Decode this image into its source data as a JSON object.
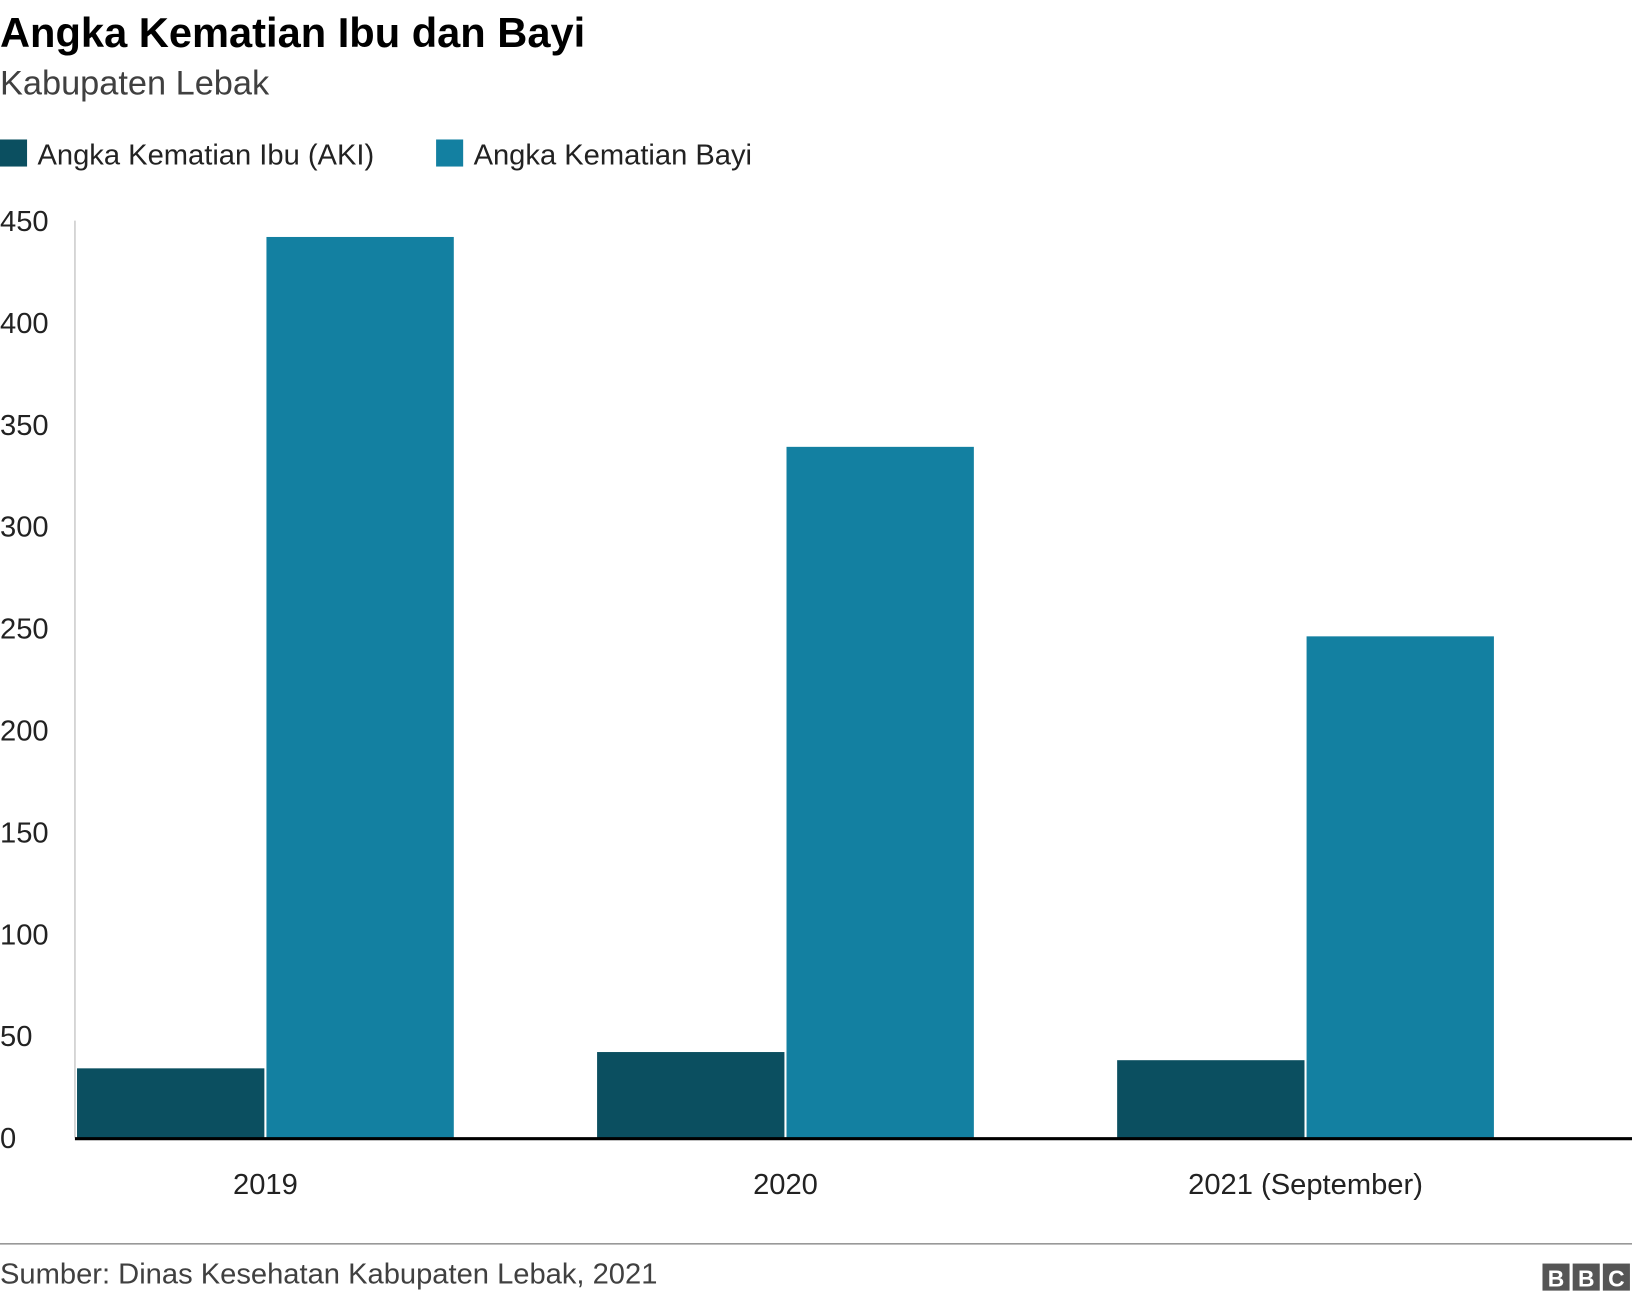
{
  "chart_data": {
    "type": "bar",
    "title": "Angka Kematian Ibu dan Bayi",
    "subtitle": "Kabupaten Lebak",
    "categories": [
      "2019",
      "2020",
      "2021 (September)"
    ],
    "series": [
      {
        "name": "Angka Kematian Ibu (AKI)",
        "values": [
          34,
          42,
          38
        ],
        "color": "#0b4f60"
      },
      {
        "name": "Angka Kematian Bayi",
        "values": [
          442,
          339,
          246
        ],
        "color": "#1380a1"
      }
    ],
    "ylim": [
      0,
      450
    ],
    "yticks": [
      "0",
      "50",
      "100",
      "150",
      "200",
      "250",
      "300",
      "350",
      "400",
      "450"
    ],
    "grid": false,
    "legend_position": "top-left",
    "source": "Sumber: Dinas Kesehatan Kabupaten Lebak, 2021",
    "logo": "BBC"
  }
}
